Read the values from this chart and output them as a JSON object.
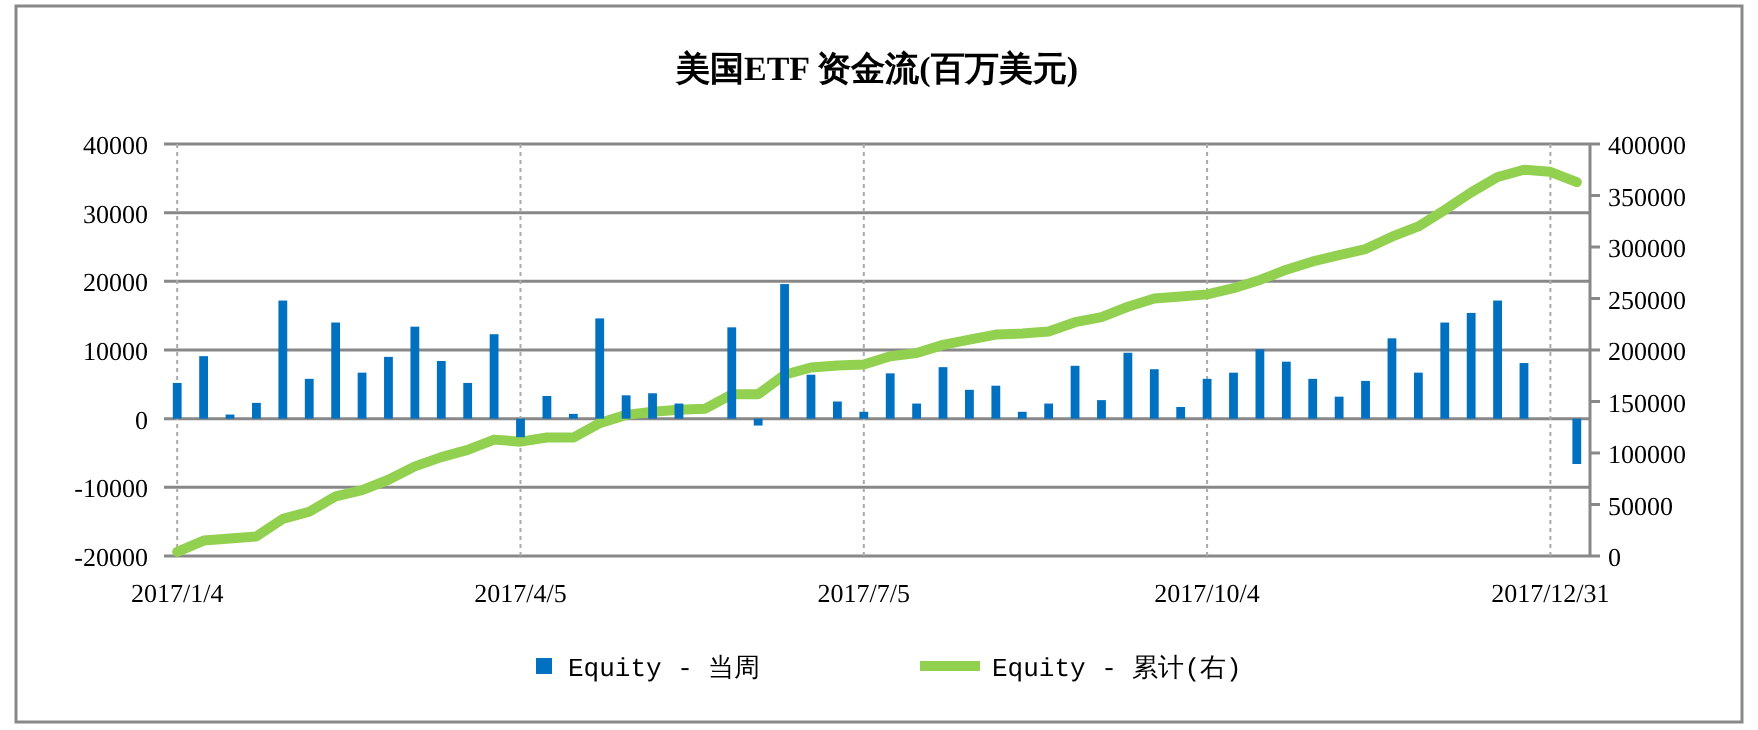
{
  "chart_data": {
    "type": "bar",
    "title": "美国ETF 资金流(百万美元)",
    "categories": [
      "2017/1/4",
      null,
      null,
      null,
      null,
      null,
      null,
      null,
      null,
      null,
      null,
      null,
      null,
      "2017/4/5",
      null,
      null,
      null,
      null,
      null,
      null,
      null,
      null,
      null,
      null,
      null,
      null,
      "2017/7/5",
      null,
      null,
      null,
      null,
      null,
      null,
      null,
      null,
      null,
      null,
      null,
      null,
      "2017/10/4",
      null,
      null,
      null,
      null,
      null,
      null,
      null,
      null,
      null,
      null,
      null,
      null,
      "2017/12/31",
      null
    ],
    "series": [
      {
        "name": "Equity - 当周",
        "color": "#0070c0",
        "values": [
          5200,
          9100,
          600,
          2300,
          17200,
          5800,
          14000,
          6700,
          9000,
          13400,
          8400,
          5200,
          12300,
          -2700,
          3300,
          700,
          14600,
          3400,
          3700,
          2200,
          null,
          13300,
          -1000,
          19600,
          6400,
          2500,
          1000,
          6600,
          2200,
          7500,
          4200,
          4800,
          1000,
          2200,
          7700,
          2700,
          9600,
          7200,
          1700,
          5800,
          6700,
          10100,
          8300,
          5800,
          3200,
          5500,
          11700,
          6700,
          14000,
          15400,
          17200,
          8100,
          null,
          -6600
        ]
      },
      {
        "name": "Equity - 累计(右)",
        "type": "line",
        "axis": "y2",
        "color": "#92d050",
        "values": [
          4000,
          15000,
          17000,
          19000,
          36000,
          43000,
          58000,
          64000,
          74000,
          87000,
          96000,
          103000,
          113000,
          111000,
          115000,
          115000,
          129000,
          137000,
          140000,
          142000,
          143000,
          157000,
          157000,
          176000,
          183000,
          185000,
          186000,
          194000,
          197000,
          205000,
          210000,
          215000,
          216000,
          218000,
          227000,
          232000,
          242000,
          250000,
          252000,
          254000,
          260000,
          268000,
          278000,
          286000,
          292000,
          298000,
          310000,
          320000,
          336000,
          353000,
          368000,
          375000,
          373000,
          363000
        ]
      }
    ],
    "ylim": [
      -20000,
      40000
    ],
    "yticks": [
      -20000,
      -10000,
      0,
      10000,
      20000,
      30000,
      40000
    ],
    "y2lim": [
      0,
      400000
    ],
    "y2ticks": [
      0,
      50000,
      100000,
      150000,
      200000,
      250000,
      300000,
      350000,
      400000
    ],
    "grid": true,
    "legend": "bottom"
  }
}
